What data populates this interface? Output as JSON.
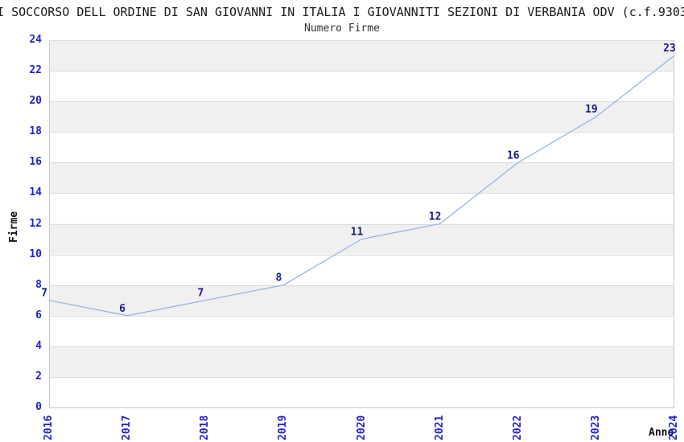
{
  "header": {
    "title": "I SOCCORSO DELL ORDINE DI SAN GIOVANNI IN ITALIA I GIOVANNITI SEZIONI DI VERBANIA ODV (c.f.9303",
    "subtitle": "Numero Firme"
  },
  "axes": {
    "y_label": "Firme",
    "x_label": "Anno"
  },
  "chart_data": {
    "type": "line",
    "title": "Numero Firme",
    "categories": [
      "2016",
      "2017",
      "2018",
      "2019",
      "2020",
      "2021",
      "2022",
      "2023",
      "2024"
    ],
    "values": [
      7,
      6,
      7,
      8,
      11,
      12,
      16,
      19,
      23
    ],
    "xlabel": "Anno",
    "ylabel": "Firme",
    "ylim": [
      0,
      24
    ],
    "ytick_step": 2,
    "grid": "horizontal alternating bands with gridlines at even values",
    "legend": "none",
    "colors": {
      "line": "#8cb2e4",
      "tick_label": "#2222cc",
      "data_label": "#1a1a8c",
      "band_gray": "#f0f0f0",
      "band_white": "#ffffff",
      "gridline": "#dcdcdc",
      "axis_border": "#c8c8c8",
      "title_text": "#1a1a1a"
    }
  }
}
